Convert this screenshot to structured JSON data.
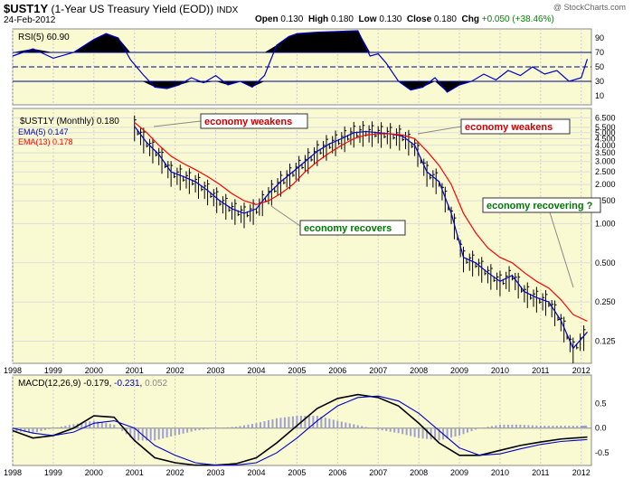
{
  "header": {
    "symbol": "$UST1Y",
    "name": "(1-Year US Treasury Yield (EOD))",
    "exchange": "INDX",
    "date": "24-Feb-2012",
    "open_label": "Open",
    "open": "0.130",
    "high_label": "High",
    "high": "0.180",
    "low_label": "Low",
    "low": "0.130",
    "close_label": "Close",
    "close": "0.180",
    "chg_label": "Chg",
    "chg": "+0.050 (+38.46%)",
    "brand": "@ StockCharts.com"
  },
  "chart_data": [
    {
      "type": "line",
      "panel": "rsi",
      "label": "RSI(5) 60.90",
      "ylim": [
        0,
        100
      ],
      "yticks": [
        10,
        30,
        50,
        70,
        90
      ],
      "levels": [
        30,
        50,
        70
      ],
      "x": [
        1998.0,
        1998.5,
        1999.0,
        1999.5,
        2000.0,
        2000.3,
        2000.6,
        2000.9,
        2001.2,
        2001.5,
        2001.8,
        2002.1,
        2002.4,
        2002.7,
        2003.0,
        2003.3,
        2003.6,
        2003.9,
        2004.2,
        2004.5,
        2004.8,
        2005.0,
        2005.5,
        2006.0,
        2006.5,
        2006.8,
        2007.0,
        2007.2,
        2007.5,
        2007.8,
        2008.1,
        2008.4,
        2008.7,
        2009.0,
        2009.3,
        2009.6,
        2009.9,
        2010.2,
        2010.5,
        2010.8,
        2011.1,
        2011.4,
        2011.7,
        2012.0,
        2012.15
      ],
      "values": [
        65,
        75,
        62,
        70,
        88,
        96,
        90,
        60,
        40,
        22,
        20,
        25,
        35,
        28,
        38,
        25,
        30,
        22,
        38,
        80,
        92,
        96,
        98,
        99,
        100,
        65,
        68,
        55,
        30,
        18,
        22,
        35,
        15,
        25,
        30,
        40,
        32,
        45,
        38,
        50,
        40,
        45,
        30,
        35,
        60.9
      ]
    },
    {
      "type": "line",
      "panel": "price",
      "title": "$UST1Y (Monthly) 0.180",
      "y_scale": "log",
      "yticks": [
        0.125,
        0.25,
        0.5,
        1.0,
        1.5,
        2.0,
        2.5,
        3.0,
        3.5,
        4.0,
        4.5,
        5.0,
        5.5,
        6.5
      ],
      "x_ticks": [
        "1998",
        "1999",
        "2000",
        "2001",
        "2002",
        "2003",
        "2004",
        "2005",
        "2006",
        "2007",
        "2008",
        "2009",
        "2010",
        "2011",
        "2012"
      ],
      "x": [
        2001.0,
        2001.3,
        2001.6,
        2001.9,
        2002.2,
        2002.5,
        2002.8,
        2003.1,
        2003.4,
        2003.7,
        2004.0,
        2004.3,
        2004.6,
        2004.9,
        2005.2,
        2005.5,
        2005.8,
        2006.1,
        2006.4,
        2006.7,
        2007.0,
        2007.3,
        2007.6,
        2007.9,
        2008.2,
        2008.5,
        2008.8,
        2009.1,
        2009.4,
        2009.7,
        2010.0,
        2010.3,
        2010.6,
        2010.9,
        2011.2,
        2011.5,
        2011.8,
        2012.15
      ],
      "series": [
        {
          "name": "EMA(5) 0.147",
          "color": "#0000cc",
          "values": [
            5.6,
            4.2,
            3.4,
            2.5,
            2.3,
            2.1,
            1.8,
            1.5,
            1.3,
            1.2,
            1.3,
            1.7,
            2.1,
            2.5,
            3.0,
            3.6,
            4.1,
            4.5,
            5.0,
            5.1,
            5.0,
            4.9,
            4.7,
            4.0,
            2.5,
            2.1,
            1.2,
            0.55,
            0.5,
            0.42,
            0.36,
            0.4,
            0.3,
            0.27,
            0.25,
            0.18,
            0.11,
            0.147
          ]
        },
        {
          "name": "EMA(13) 0.178",
          "color": "#ff0000",
          "values": [
            6.0,
            5.0,
            4.0,
            3.3,
            2.9,
            2.6,
            2.3,
            2.0,
            1.7,
            1.5,
            1.4,
            1.5,
            1.7,
            2.0,
            2.5,
            3.0,
            3.5,
            4.0,
            4.5,
            4.8,
            4.9,
            4.9,
            4.8,
            4.5,
            3.6,
            2.8,
            2.0,
            1.2,
            0.85,
            0.65,
            0.55,
            0.5,
            0.42,
            0.36,
            0.32,
            0.26,
            0.2,
            0.178
          ]
        }
      ],
      "annotations": [
        "economy weakens",
        "economy recovers",
        "economy weakens",
        "economy recovering ?"
      ]
    },
    {
      "type": "line",
      "panel": "macd",
      "label": "MACD(12,26,9)",
      "macd": "-0.179",
      "signal": "-0.231",
      "histogram": "0.052",
      "ylim": [
        -0.7,
        0.8
      ],
      "yticks": [
        -0.5,
        0.0,
        0.5
      ],
      "x": [
        1998.0,
        1998.5,
        1999.0,
        1999.5,
        2000.0,
        2000.5,
        2001.0,
        2001.5,
        2002.0,
        2002.5,
        2003.0,
        2003.5,
        2004.0,
        2004.5,
        2005.0,
        2005.5,
        2006.0,
        2006.5,
        2007.0,
        2007.5,
        2008.0,
        2008.5,
        2009.0,
        2009.5,
        2010.0,
        2010.5,
        2011.0,
        2011.5,
        2012.0,
        2012.15
      ],
      "series": [
        {
          "name": "MACD",
          "color": "#000000",
          "values": [
            -0.05,
            -0.2,
            -0.15,
            0.0,
            0.25,
            0.22,
            -0.25,
            -0.6,
            -0.7,
            -0.75,
            -0.75,
            -0.72,
            -0.6,
            -0.3,
            0.05,
            0.4,
            0.6,
            0.68,
            0.62,
            0.45,
            0.1,
            -0.3,
            -0.55,
            -0.55,
            -0.45,
            -0.35,
            -0.28,
            -0.22,
            -0.19,
            -0.179
          ]
        },
        {
          "name": "Signal",
          "color": "#0000cc",
          "values": [
            0.0,
            -0.1,
            -0.15,
            -0.08,
            0.1,
            0.15,
            0.0,
            -0.35,
            -0.55,
            -0.7,
            -0.75,
            -0.75,
            -0.7,
            -0.5,
            -0.2,
            0.15,
            0.45,
            0.62,
            0.65,
            0.55,
            0.3,
            -0.05,
            -0.4,
            -0.55,
            -0.52,
            -0.42,
            -0.33,
            -0.27,
            -0.24,
            -0.231
          ]
        }
      ]
    }
  ]
}
